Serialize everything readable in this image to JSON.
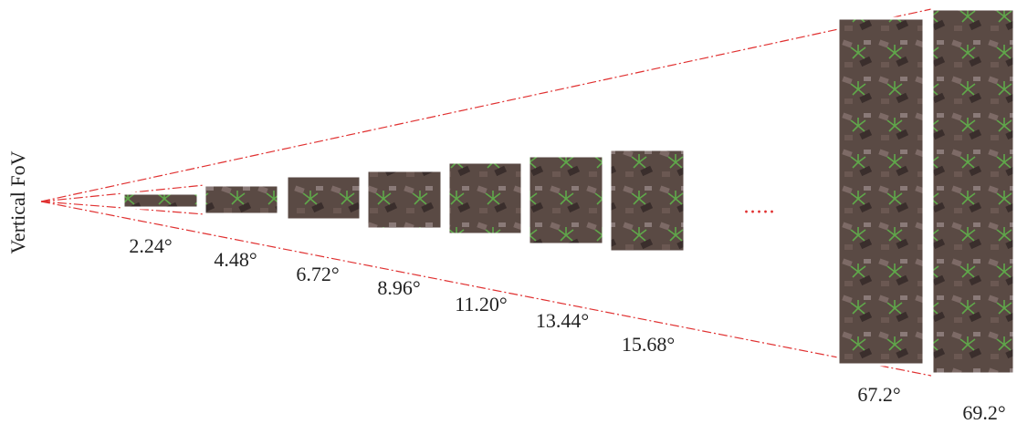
{
  "axis_label": "Vertical FoV",
  "views": [
    {
      "angle": "2.24°"
    },
    {
      "angle": "4.48°"
    },
    {
      "angle": "6.72°"
    },
    {
      "angle": "8.96°"
    },
    {
      "angle": "11.20°"
    },
    {
      "angle": "13.44°"
    },
    {
      "angle": "15.68°"
    },
    {
      "angle": "67.2°"
    },
    {
      "angle": "69.2°"
    }
  ],
  "ellipsis": "....."
}
